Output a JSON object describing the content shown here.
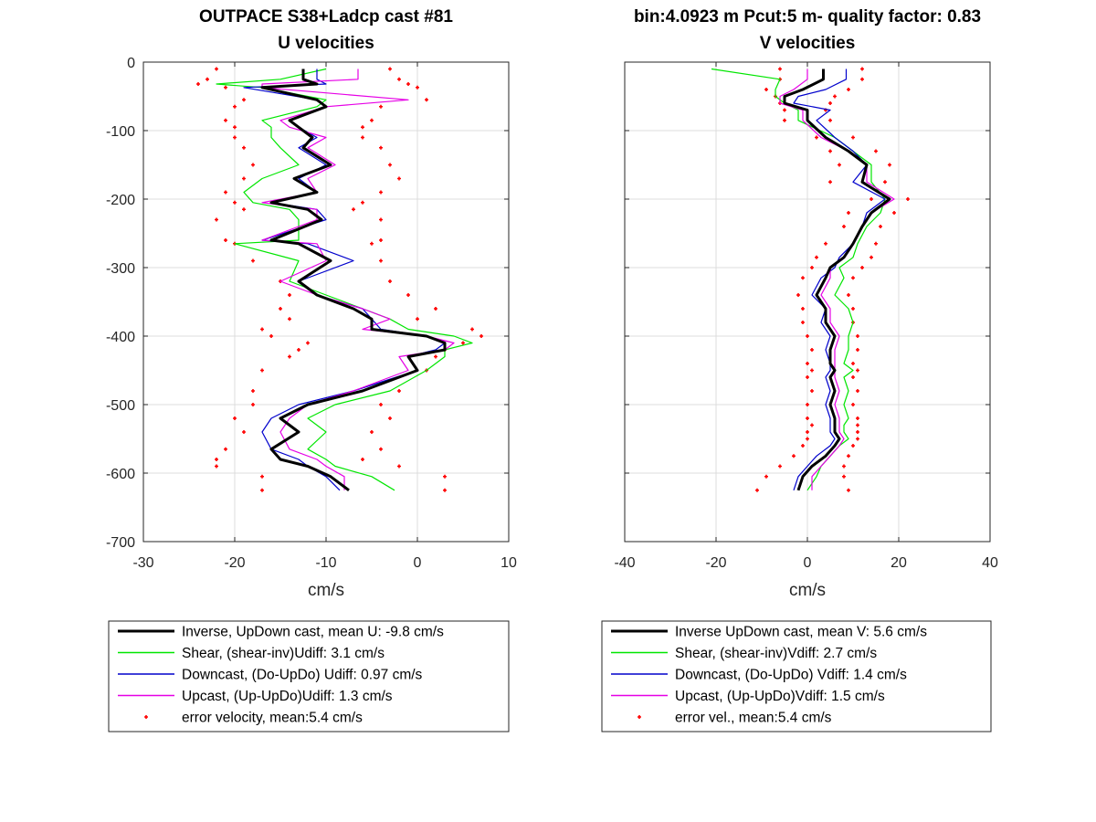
{
  "chart_data": [
    {
      "type": "line",
      "title": "OUTPACE S38+Ladcp cast #81",
      "subtitle": "U velocities",
      "xlabel": "cm/s",
      "ylabel": "",
      "xlim": [
        -30,
        10
      ],
      "ylim": [
        -700,
        0
      ],
      "xticks": [
        "-30",
        "-20",
        "-10",
        "0",
        "10"
      ],
      "yticks": [
        "0",
        "-100",
        "-200",
        "-300",
        "-400",
        "-500",
        "-600",
        "-700"
      ],
      "grid": true,
      "legend_position": "below",
      "legend": [
        "Inverse, UpDown cast, mean U:  -9.8 cm/s",
        "Shear, (shear-inv)Udiff:  3.1 cm/s",
        "Downcast, (Do-UpDo) Udiff:  0.97 cm/s",
        "Upcast, (Up-UpDo)Udiff:  1.3 cm/s",
        "error velocity, mean:5.4 cm/s"
      ],
      "series": [
        {
          "name": "Inverse",
          "color": "#000000",
          "x": [
            -12.5,
            -12.5,
            -11,
            -17,
            -11,
            -10,
            -14,
            -13,
            -11.5,
            -12.5,
            -9.5,
            -13.5,
            -11,
            -16,
            -12,
            -10.5,
            -16,
            -13,
            -9.5,
            -13,
            -11,
            -7,
            -5,
            -5,
            1,
            3,
            3,
            -1,
            0,
            -6,
            -12,
            -15,
            -13,
            -16,
            -15,
            -12,
            -9.5,
            -7.5
          ],
          "y": [
            -10,
            -25,
            -32,
            -37,
            -55,
            -65,
            -85,
            -95,
            -110,
            -125,
            -150,
            -170,
            -190,
            -205,
            -215,
            -230,
            -260,
            -265,
            -290,
            -320,
            -340,
            -360,
            -375,
            -390,
            -400,
            -410,
            -420,
            -430,
            -450,
            -480,
            -500,
            -520,
            -540,
            -565,
            -580,
            -590,
            -605,
            -625
          ]
        },
        {
          "name": "Shear",
          "color": "#00e600",
          "x": [
            -10,
            -15,
            -22,
            -17,
            -10,
            -11,
            -17,
            -16,
            -16,
            -15,
            -13,
            -17,
            -19,
            -18,
            -14,
            -13,
            -13,
            -20,
            -13,
            -14,
            -10,
            -6,
            -3,
            -1,
            4,
            6,
            3,
            3,
            1,
            -3,
            -9,
            -12,
            -10,
            -12,
            -10,
            -9,
            -5,
            -2.5
          ],
          "y": [
            -10,
            -25,
            -32,
            -37,
            -55,
            -65,
            -85,
            -95,
            -110,
            -125,
            -150,
            -170,
            -190,
            -205,
            -215,
            -230,
            -260,
            -265,
            -290,
            -320,
            -340,
            -360,
            -375,
            -390,
            -400,
            -410,
            -420,
            -430,
            -450,
            -480,
            -500,
            -520,
            -540,
            -565,
            -580,
            -590,
            -605,
            -625
          ]
        },
        {
          "name": "Downcast",
          "color": "#0000cc",
          "x": [
            -11,
            -11,
            -10,
            -19,
            -11,
            -10,
            -14,
            -13,
            -11,
            -13,
            -10,
            -13,
            -11,
            -16,
            -11,
            -10,
            -17,
            -12,
            -7,
            -13,
            -11,
            -6,
            -5,
            -4,
            1,
            3,
            2,
            -1,
            0,
            -7,
            -13,
            -16,
            -17,
            -16,
            -13,
            -12,
            -10,
            -8.5
          ],
          "y": [
            -10,
            -25,
            -32,
            -37,
            -55,
            -65,
            -85,
            -95,
            -110,
            -125,
            -150,
            -170,
            -190,
            -205,
            -215,
            -230,
            -260,
            -265,
            -290,
            -320,
            -340,
            -360,
            -375,
            -390,
            -400,
            -410,
            -420,
            -430,
            -450,
            -480,
            -500,
            -520,
            -540,
            -565,
            -580,
            -590,
            -605,
            -625
          ]
        },
        {
          "name": "Upcast",
          "color": "#e600e6",
          "x": [
            -6.5,
            -6.5,
            -17,
            -17,
            -1,
            -10,
            -15,
            -14,
            -10,
            -12,
            -9,
            -12,
            -11,
            -17,
            -11,
            -11,
            -17,
            -11,
            -10,
            -15,
            -11,
            -6,
            -3,
            -6,
            1,
            4,
            3,
            -2,
            -1,
            -7,
            -12,
            -14,
            -15,
            -14,
            -11,
            -10,
            -8,
            -8
          ],
          "y": [
            -10,
            -25,
            -32,
            -37,
            -55,
            -65,
            -85,
            -95,
            -110,
            -125,
            -150,
            -170,
            -190,
            -205,
            -215,
            -230,
            -260,
            -265,
            -290,
            -320,
            -340,
            -360,
            -375,
            -390,
            -400,
            -410,
            -420,
            -430,
            -450,
            -480,
            -500,
            -520,
            -540,
            -565,
            -580,
            -590,
            -605,
            -625
          ]
        }
      ],
      "error_points": {
        "name": "error velocity",
        "color": "#ff0000",
        "x_left": [
          -22,
          -23,
          -24,
          -21,
          -19,
          -20,
          -21,
          -20,
          -20,
          -19,
          -18,
          -19,
          -21,
          -20,
          -19,
          -22,
          -21,
          -20,
          -18,
          -15,
          -14,
          -15,
          -14,
          -17,
          -16,
          -12,
          -13,
          -14,
          -17,
          -18,
          -18,
          -20,
          -19,
          -21,
          -22,
          -22,
          -17,
          -17
        ],
        "x_right": [
          -3,
          -2,
          -1,
          0,
          1,
          -4,
          -5,
          -6,
          -6,
          -4,
          -3,
          -2,
          -4,
          -6,
          -7,
          -4,
          -4,
          -5,
          -4,
          -3,
          -1,
          2,
          0,
          6,
          7,
          5,
          3,
          2,
          1,
          -2,
          -4,
          -3,
          -5,
          -4,
          -6,
          -2,
          3,
          3
        ],
        "y": [
          -10,
          -25,
          -32,
          -37,
          -55,
          -65,
          -85,
          -95,
          -110,
          -125,
          -150,
          -170,
          -190,
          -205,
          -215,
          -230,
          -260,
          -265,
          -290,
          -320,
          -340,
          -360,
          -375,
          -390,
          -400,
          -410,
          -420,
          -430,
          -450,
          -480,
          -500,
          -520,
          -540,
          -565,
          -580,
          -590,
          -605,
          -625
        ]
      }
    },
    {
      "type": "line",
      "title": "bin:4.0923 m  Pcut:5 m- quality factor:  0.83",
      "subtitle": "V velocities",
      "xlabel": "cm/s",
      "ylabel": "",
      "xlim": [
        -40,
        40
      ],
      "ylim": [
        -700,
        0
      ],
      "xticks": [
        "-40",
        "-20",
        "0",
        "20",
        "40"
      ],
      "grid": true,
      "legend_position": "below",
      "legend": [
        "Inverse UpDown cast, mean V:  5.6 cm/s",
        "Shear, (shear-inv)Vdiff:  2.7 cm/s",
        "Downcast, (Do-UpDo) Vdiff:  1.4 cm/s",
        "Upcast, (Up-UpDo)Vdiff:  1.5 cm/s",
        "error vel., mean:5.4 cm/s"
      ],
      "series": [
        {
          "name": "Inverse",
          "color": "#000000",
          "x": [
            3.5,
            3.5,
            -1,
            -5,
            -5,
            0,
            0,
            4,
            9,
            13,
            12,
            18,
            14,
            12,
            10,
            8,
            5,
            4,
            2,
            4,
            4,
            6,
            5,
            5,
            6,
            5,
            6,
            5,
            6,
            6,
            6,
            7,
            6,
            4,
            1,
            -1,
            -2
          ],
          "y": [
            -10,
            -25,
            -40,
            -50,
            -60,
            -70,
            -85,
            -110,
            -130,
            -150,
            -175,
            -200,
            -220,
            -240,
            -265,
            -285,
            -300,
            -315,
            -340,
            -360,
            -380,
            -400,
            -420,
            -440,
            -450,
            -460,
            -480,
            -500,
            -520,
            -530,
            -540,
            -550,
            -560,
            -575,
            -590,
            -605,
            -625
          ]
        },
        {
          "name": "Shear",
          "color": "#00e600",
          "x": [
            -21,
            -6,
            -7,
            -7,
            -5,
            -2,
            -2,
            6,
            10,
            14,
            14,
            17,
            16,
            13,
            11,
            10,
            7,
            8,
            6,
            9,
            10,
            9,
            9,
            8,
            10,
            8,
            9,
            8,
            9,
            8,
            8,
            9,
            7,
            5,
            3,
            2,
            0
          ],
          "y": [
            -10,
            -25,
            -40,
            -50,
            -60,
            -70,
            -85,
            -110,
            -130,
            -150,
            -175,
            -200,
            -220,
            -240,
            -265,
            -285,
            -300,
            -315,
            -340,
            -360,
            -380,
            -400,
            -420,
            -440,
            -450,
            -460,
            -480,
            -500,
            -520,
            -530,
            -540,
            -550,
            -560,
            -575,
            -590,
            -605,
            -625
          ]
        },
        {
          "name": "Downcast",
          "color": "#0000cc",
          "x": [
            8.5,
            8.5,
            4,
            -2,
            -3,
            5,
            2,
            6,
            10,
            13,
            10,
            17,
            13,
            12,
            10,
            7,
            6,
            3,
            1,
            4,
            3,
            5,
            4,
            5,
            5,
            4,
            5,
            4,
            5,
            5,
            5,
            6,
            5,
            2,
            0,
            -2,
            -3
          ],
          "y": [
            -10,
            -25,
            -40,
            -50,
            -60,
            -70,
            -85,
            -110,
            -130,
            -150,
            -175,
            -200,
            -220,
            -240,
            -265,
            -285,
            -300,
            -315,
            -340,
            -360,
            -380,
            -400,
            -420,
            -440,
            -450,
            -460,
            -480,
            -500,
            -520,
            -530,
            -540,
            -550,
            -560,
            -575,
            -590,
            -605,
            -625
          ]
        },
        {
          "name": "Upcast",
          "color": "#e600e6",
          "x": [
            0,
            0,
            -3,
            -6,
            -6,
            -1,
            -1,
            3,
            9,
            13,
            13,
            19,
            14,
            12,
            10,
            8,
            5,
            5,
            3,
            5,
            5,
            7,
            6,
            6,
            6,
            6,
            7,
            6,
            7,
            7,
            7,
            8,
            7,
            5,
            3,
            1,
            1
          ],
          "y": [
            -10,
            -25,
            -40,
            -50,
            -60,
            -70,
            -85,
            -110,
            -130,
            -150,
            -175,
            -200,
            -220,
            -240,
            -265,
            -285,
            -300,
            -315,
            -340,
            -360,
            -380,
            -400,
            -420,
            -440,
            -450,
            -460,
            -480,
            -500,
            -520,
            -530,
            -540,
            -550,
            -560,
            -575,
            -590,
            -605,
            -625
          ]
        }
      ],
      "error_points": {
        "name": "error vel.",
        "color": "#ff0000",
        "x_left": [
          -6,
          -6,
          -9,
          -7,
          -6,
          -5,
          -5,
          2,
          5,
          7,
          5,
          14,
          9,
          8,
          4,
          2,
          1,
          -1,
          -2,
          -1,
          -1,
          0,
          1,
          0,
          1,
          0,
          1,
          0,
          0,
          1,
          0,
          0,
          -1,
          -3,
          -6,
          -9,
          -11
        ],
        "x_right": [
          12,
          12,
          9,
          6,
          5,
          4,
          5,
          10,
          15,
          18,
          17,
          22,
          19,
          16,
          15,
          14,
          12,
          10,
          9,
          10,
          10,
          11,
          11,
          10,
          11,
          10,
          11,
          10,
          11,
          11,
          11,
          11,
          10,
          9,
          8,
          8,
          9
        ],
        "y": [
          -10,
          -25,
          -40,
          -50,
          -60,
          -70,
          -85,
          -110,
          -130,
          -150,
          -175,
          -200,
          -220,
          -240,
          -265,
          -285,
          -300,
          -315,
          -340,
          -360,
          -380,
          -400,
          -420,
          -440,
          -450,
          -460,
          -480,
          -500,
          -520,
          -530,
          -540,
          -550,
          -560,
          -575,
          -590,
          -605,
          -625
        ]
      }
    }
  ]
}
